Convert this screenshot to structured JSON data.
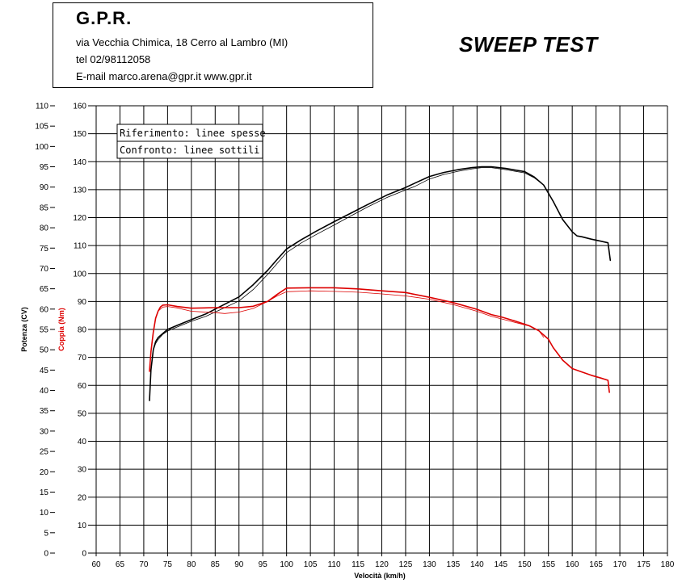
{
  "header": {
    "company": "G.P.R.",
    "address": "via Vecchia Chimica, 18 Cerro al Lambro (MI)",
    "tel": "tel 02/98112058",
    "contact": "E-mail marco.arena@gpr.it  www.gpr.it"
  },
  "title": "SWEEP TEST",
  "legend": {
    "reference": "Riferimento: linee spesse",
    "comparison": "Confronto: linee sottili"
  },
  "colors": {
    "power": "#000000",
    "torque": "#dd0000",
    "grid": "#000000"
  },
  "chart_data": {
    "type": "line",
    "title": "SWEEP TEST",
    "xlabel": "Velocità (km/h)",
    "ylabel_power": "Potenza (CV)",
    "ylabel_torque": "Coppia (Nm)",
    "xlim": [
      60,
      180
    ],
    "ylim_power": [
      0,
      110
    ],
    "ylim_torque": [
      0,
      160
    ],
    "x_ticks": [
      60,
      65,
      70,
      75,
      80,
      85,
      90,
      95,
      100,
      105,
      110,
      115,
      120,
      125,
      130,
      135,
      140,
      145,
      150,
      155,
      160,
      165,
      170,
      175,
      180
    ],
    "power_ticks": [
      0,
      5,
      10,
      15,
      20,
      25,
      30,
      35,
      40,
      45,
      50,
      55,
      60,
      65,
      70,
      75,
      80,
      85,
      90,
      95,
      100,
      105,
      110
    ],
    "torque_ticks": [
      0,
      10,
      20,
      30,
      40,
      50,
      60,
      70,
      80,
      90,
      100,
      110,
      120,
      130,
      140,
      150,
      160
    ],
    "grid": true,
    "legend_position": "top-left",
    "series": [
      {
        "name": "",
        "axis": "power",
        "color": "#000000",
        "width": 1.6,
        "x": [
          71.2,
          71.5,
          72,
          72.5,
          73,
          74,
          75,
          77,
          80,
          83,
          86,
          90,
          93,
          96,
          98,
          100,
          103,
          106,
          110,
          113,
          117,
          121,
          125,
          127,
          130,
          133,
          136,
          139,
          141,
          143,
          146,
          150,
          152,
          154,
          156,
          158,
          160,
          161,
          162,
          164,
          166,
          167.5,
          168
        ],
        "y": [
          37.5,
          45,
          50,
          52,
          53,
          54,
          55,
          56,
          57.4,
          58.8,
          60.6,
          63,
          66,
          69.5,
          72.2,
          74.8,
          77,
          79,
          81.5,
          83.3,
          85.7,
          88,
          89.9,
          91,
          92.6,
          93.6,
          94.3,
          94.8,
          95,
          95,
          94.6,
          93.8,
          92.5,
          90.5,
          86.5,
          82,
          79,
          78,
          77.8,
          77.2,
          76.7,
          76.3,
          72
        ]
      },
      {
        "name": "",
        "axis": "power",
        "color": "#000000",
        "width": 0.8,
        "x": [
          72,
          72.5,
          73,
          74,
          75,
          77,
          80,
          83,
          86,
          90,
          93,
          96,
          98,
          100,
          103,
          106,
          110,
          113,
          117,
          121,
          125,
          127,
          130,
          133,
          136,
          139,
          141,
          143,
          146,
          150,
          152,
          154
        ],
        "y": [
          50,
          51.5,
          52.5,
          53.8,
          54.6,
          55.6,
          57,
          58.2,
          59.8,
          62,
          64.8,
          68.5,
          71.2,
          73.9,
          76.2,
          78.2,
          80.7,
          82.6,
          85.1,
          87.4,
          89.3,
          90.2,
          92,
          93.1,
          93.9,
          94.5,
          94.8,
          94.8,
          94.3,
          93.5,
          92.3,
          90.5
        ]
      },
      {
        "name": "",
        "axis": "torque",
        "color": "#dd0000",
        "width": 1.6,
        "x": [
          71.2,
          71.5,
          72,
          72.5,
          73,
          73.5,
          74,
          75,
          77,
          80,
          85,
          90,
          93,
          96,
          98,
          100,
          105,
          110,
          115,
          120,
          125,
          130,
          135,
          140,
          143,
          145,
          148,
          151,
          153,
          155,
          156,
          158,
          160,
          162,
          164,
          166,
          167.5,
          167.8
        ],
        "y": [
          65,
          72,
          79,
          84,
          86.5,
          88,
          88.7,
          88.8,
          88.2,
          87.6,
          87.8,
          87.8,
          88.3,
          90,
          92.5,
          94.8,
          94.9,
          94.9,
          94.5,
          93.8,
          93.2,
          91.5,
          89.6,
          87.2,
          85.3,
          84.5,
          83,
          81.3,
          79.5,
          76.5,
          73.5,
          69,
          66,
          64.8,
          63.6,
          62.6,
          61.8,
          57.5
        ]
      },
      {
        "name": "",
        "axis": "torque",
        "color": "#dd0000",
        "width": 0.8,
        "x": [
          72.5,
          73,
          74,
          75,
          77,
          80,
          85,
          87,
          90,
          93,
          96,
          98,
          100,
          105,
          110,
          115,
          120,
          125,
          130,
          135,
          140,
          143,
          145,
          148,
          151,
          153,
          154
        ],
        "y": [
          84,
          86.5,
          88,
          88.2,
          87.7,
          86.5,
          86,
          85.7,
          86.2,
          87.5,
          90,
          92,
          93.5,
          93.8,
          93.6,
          93.3,
          92.7,
          92,
          90.8,
          88.9,
          86.5,
          84.7,
          83.8,
          82.5,
          81.2,
          79.5,
          77.2
        ]
      }
    ]
  }
}
